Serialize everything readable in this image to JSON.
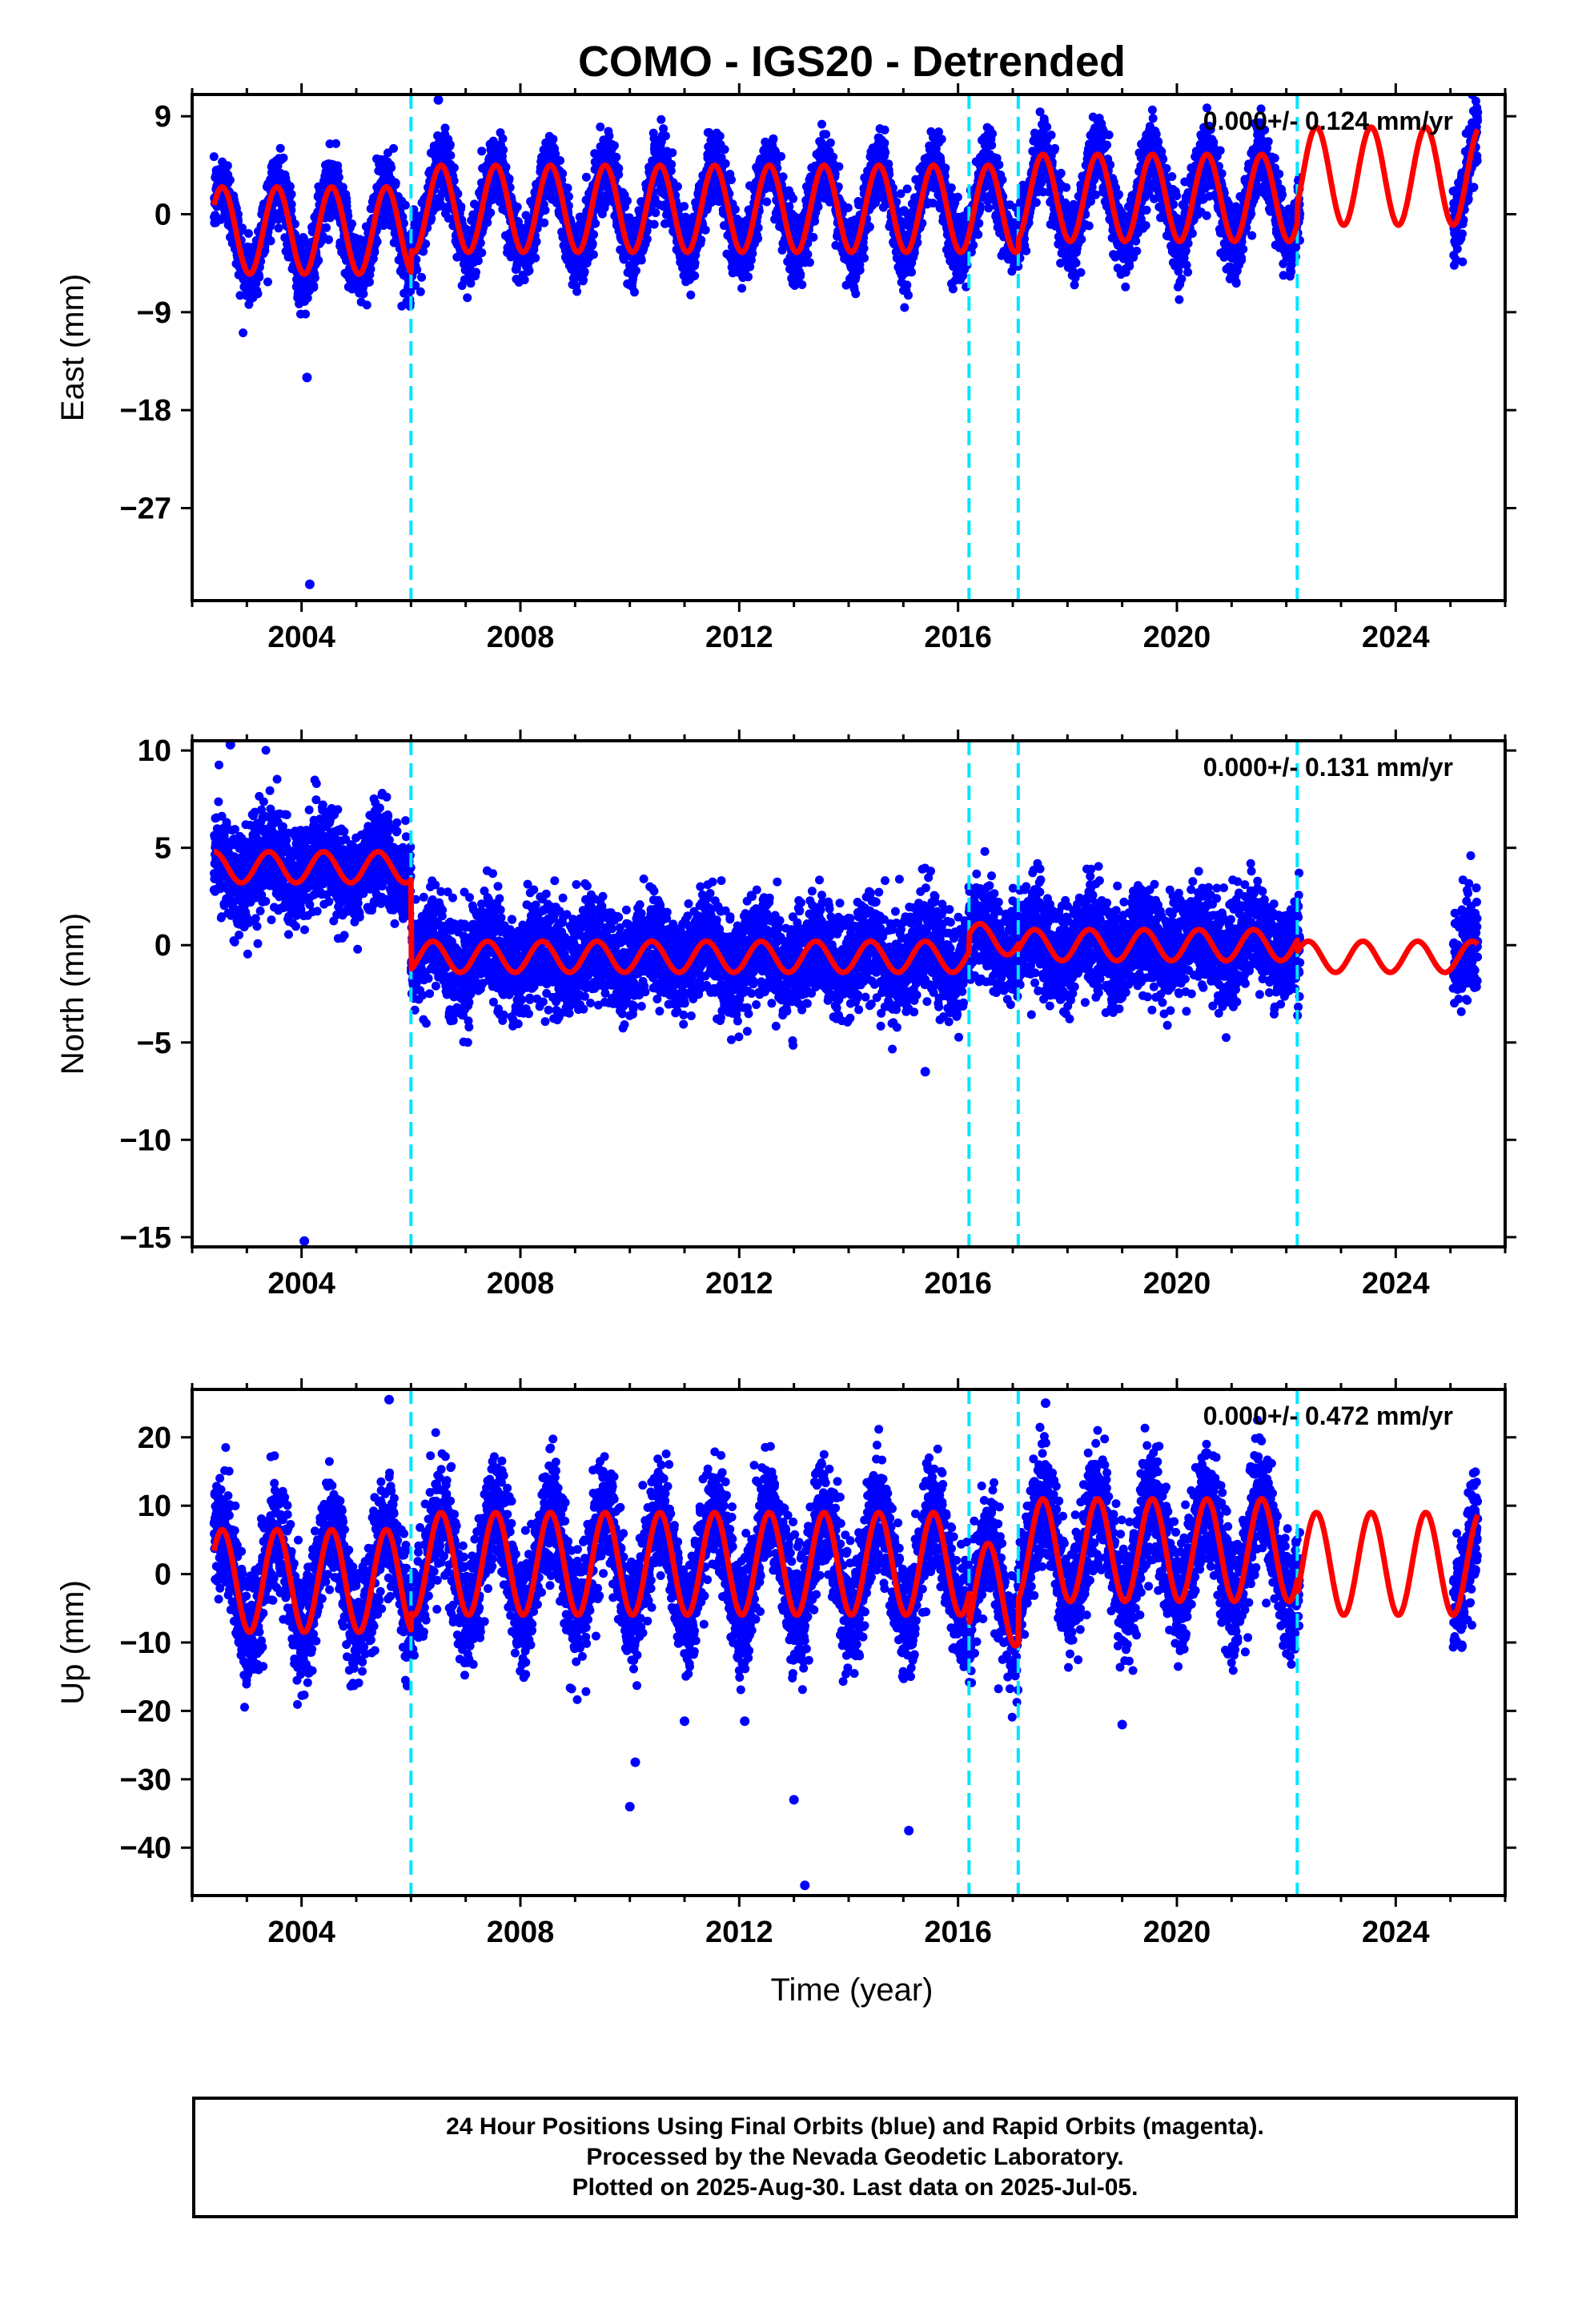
{
  "title": "COMO - IGS20 - Detrended",
  "footer": {
    "line1": "24 Hour Positions Using Final Orbits (blue) and Rapid Orbits (magenta).",
    "line2": "Processed by the Nevada Geodetic Laboratory.",
    "line3": "Plotted on 2025-Aug-30. Last data on 2025-Jul-05."
  },
  "colors": {
    "data_points": "#0000ff",
    "model_line": "#ff0000",
    "offset_lines": "#00e5ff",
    "frame": "#000000"
  },
  "chart_data": [
    {
      "type": "scatter",
      "component": "east",
      "ylabel": "East (mm)",
      "xlabel": "",
      "xlim": [
        2002.0,
        2026.0
      ],
      "ylim": [
        -35.5,
        11.0
      ],
      "xticks": [
        2004,
        2008,
        2012,
        2016,
        2020,
        2024
      ],
      "xtick_labels": [
        "2004",
        "2008",
        "2012",
        "2016",
        "2020",
        "2024"
      ],
      "yticks": [
        9,
        0,
        -9,
        -18,
        -27
      ],
      "ytick_labels": [
        "9",
        "0",
        "−9",
        "−18",
        "−27"
      ],
      "rate_label": "0.000+/- 0.124 mm/yr",
      "offsets": [
        2006.0,
        2016.2,
        2017.1,
        2022.2
      ],
      "data_range": [
        2002.4,
        2025.5
      ],
      "model": {
        "amplitude": 4.2,
        "phase_peak": 0.55,
        "noise": 1.6,
        "segments": [
          {
            "start": 2002.4,
            "end": 2006.0,
            "level": -1.5,
            "amp": 4.0
          },
          {
            "start": 2006.0,
            "end": 2016.2,
            "level": 0.5,
            "amp": 4.0
          },
          {
            "start": 2016.2,
            "end": 2017.1,
            "level": 0.5,
            "amp": 4.0
          },
          {
            "start": 2017.1,
            "end": 2022.2,
            "level": 1.5,
            "amp": 4.0
          },
          {
            "start": 2022.2,
            "end": 2025.5,
            "level": 3.5,
            "amp": 4.5
          }
        ]
      },
      "outliers": [
        {
          "x": 2004.1,
          "y": -15.0
        },
        {
          "x": 2004.15,
          "y": -34.0
        },
        {
          "x": 2006.5,
          "y": 10.5
        }
      ]
    },
    {
      "type": "scatter",
      "component": "north",
      "ylabel": "North (mm)",
      "xlabel": "",
      "xlim": [
        2002.0,
        2026.0
      ],
      "ylim": [
        -15.5,
        10.5
      ],
      "xticks": [
        2004,
        2008,
        2012,
        2016,
        2020,
        2024
      ],
      "xtick_labels": [
        "2004",
        "2008",
        "2012",
        "2016",
        "2020",
        "2024"
      ],
      "yticks": [
        10,
        5,
        0,
        -5,
        -10,
        -15
      ],
      "ytick_labels": [
        "10",
        "5",
        "0",
        "−5",
        "−10",
        "−15"
      ],
      "rate_label": "0.000+/- 0.131 mm/yr",
      "offsets": [
        2006.0,
        2016.2,
        2017.1,
        2022.2
      ],
      "data_range": [
        2002.4,
        2025.5
      ],
      "model": {
        "amplitude": 0.8,
        "phase_peak": 0.4,
        "noise": 1.3,
        "segments": [
          {
            "start": 2002.4,
            "end": 2006.0,
            "level": 4.0,
            "amp": 0.8
          },
          {
            "start": 2006.0,
            "end": 2016.2,
            "level": -0.6,
            "amp": 0.8
          },
          {
            "start": 2016.2,
            "end": 2017.1,
            "level": 0.3,
            "amp": 0.8
          },
          {
            "start": 2017.1,
            "end": 2022.2,
            "level": 0.0,
            "amp": 0.8
          },
          {
            "start": 2022.2,
            "end": 2025.5,
            "level": -0.6,
            "amp": 0.8
          }
        ]
      },
      "outliers": [
        {
          "x": 2004.05,
          "y": -15.2
        },
        {
          "x": 2002.7,
          "y": 10.3
        },
        {
          "x": 2015.4,
          "y": -6.5
        }
      ]
    },
    {
      "type": "scatter",
      "component": "up",
      "ylabel": "Up (mm)",
      "xlabel": "Time (year)",
      "xlim": [
        2002.0,
        2026.0
      ],
      "ylim": [
        -47.0,
        27.0
      ],
      "xticks": [
        2004,
        2008,
        2012,
        2016,
        2020,
        2024
      ],
      "xtick_labels": [
        "2004",
        "2008",
        "2012",
        "2016",
        "2020",
        "2024"
      ],
      "yticks": [
        20,
        10,
        0,
        -10,
        -20,
        -30,
        -40
      ],
      "ytick_labels": [
        "20",
        "10",
        "0",
        "−10",
        "−20",
        "−30",
        "−40"
      ],
      "rate_label": "0.000+/- 0.472 mm/yr",
      "offsets": [
        2006.0,
        2016.2,
        2017.1,
        2022.2
      ],
      "data_range": [
        2002.4,
        2025.5
      ],
      "model": {
        "amplitude": 7.5,
        "phase_peak": 0.55,
        "noise": 4.2,
        "segments": [
          {
            "start": 2002.4,
            "end": 2006.0,
            "level": -1.0,
            "amp": 7.5
          },
          {
            "start": 2006.0,
            "end": 2016.2,
            "level": 1.5,
            "amp": 7.5
          },
          {
            "start": 2016.2,
            "end": 2017.1,
            "level": -3.0,
            "amp": 7.5
          },
          {
            "start": 2017.1,
            "end": 2022.2,
            "level": 3.5,
            "amp": 7.5
          },
          {
            "start": 2022.2,
            "end": 2025.5,
            "level": 1.5,
            "amp": 7.5
          }
        ]
      },
      "outliers": [
        {
          "x": 2010.0,
          "y": -34.0
        },
        {
          "x": 2010.1,
          "y": -27.5
        },
        {
          "x": 2013.0,
          "y": -33.0
        },
        {
          "x": 2013.2,
          "y": -45.5
        },
        {
          "x": 2015.1,
          "y": -37.5
        },
        {
          "x": 2011.0,
          "y": -21.5
        },
        {
          "x": 2012.1,
          "y": -21.5
        },
        {
          "x": 2019.0,
          "y": -22.0
        },
        {
          "x": 2005.6,
          "y": 25.5
        },
        {
          "x": 2017.6,
          "y": 25.0
        }
      ]
    }
  ]
}
